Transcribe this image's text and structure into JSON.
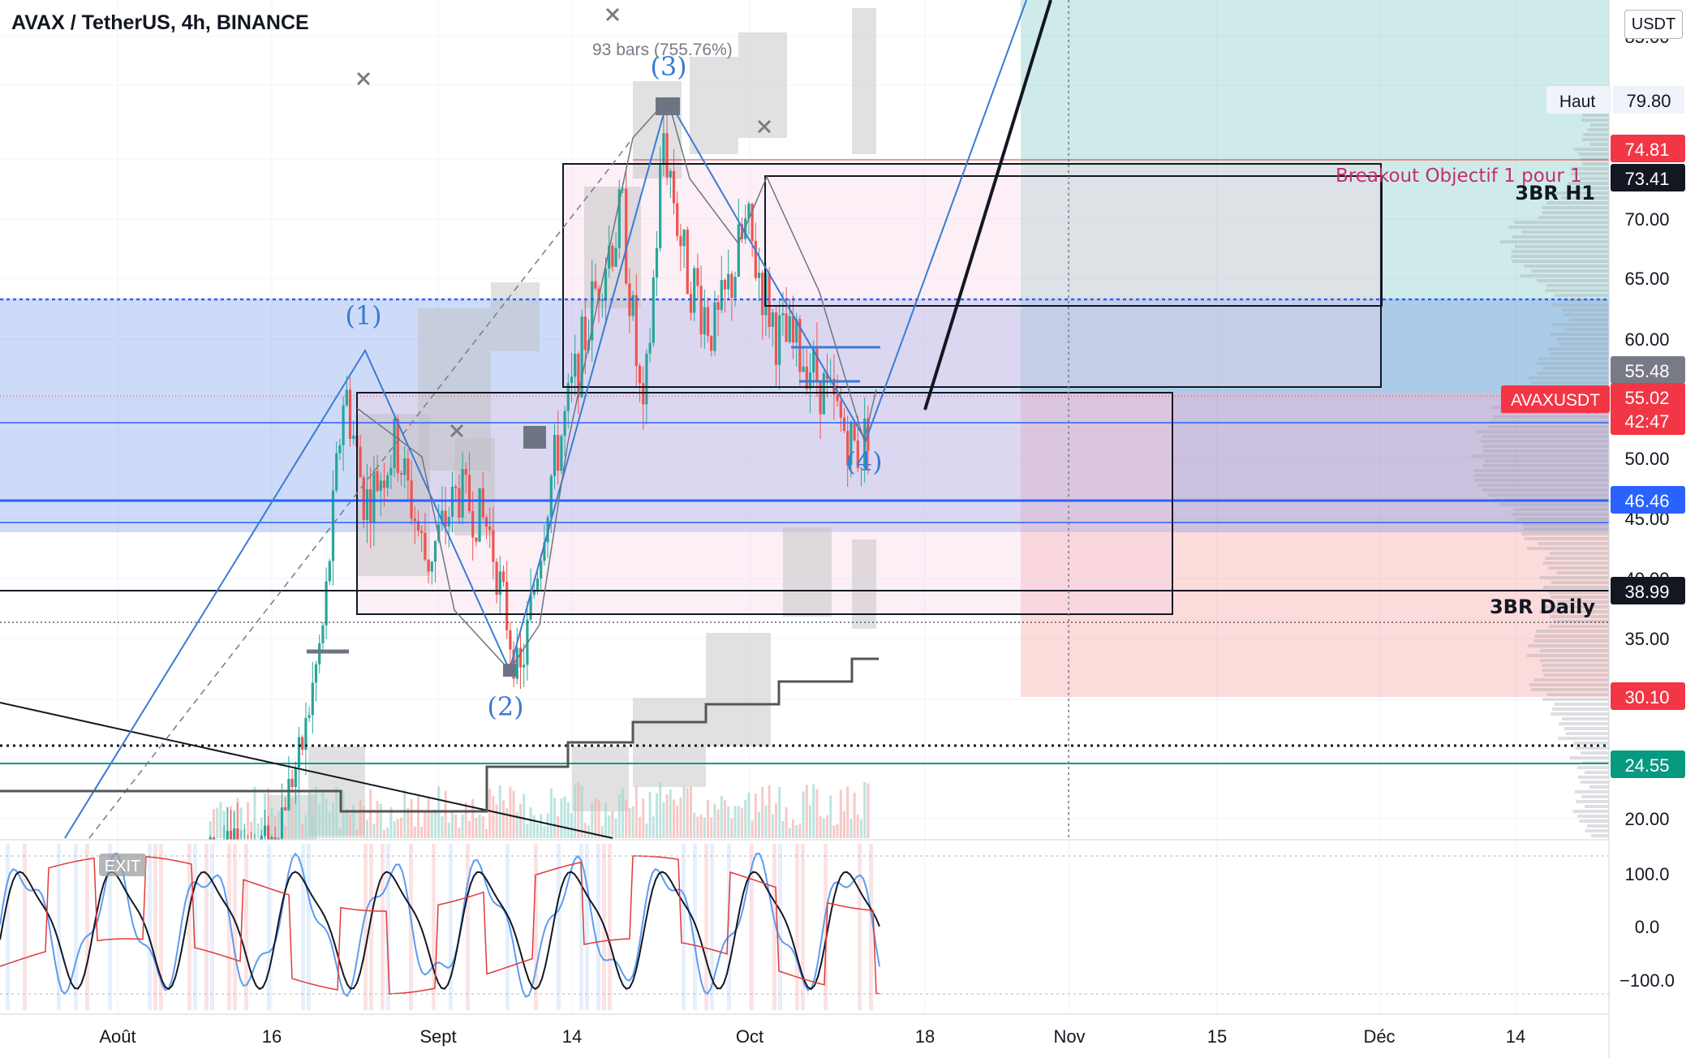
{
  "header": {
    "symbol_title": "AVAX / TetherUS, 4h, BINANCE"
  },
  "unit_button": "USDT",
  "colors": {
    "up": "#26a69a",
    "down": "#ef5350",
    "wave": "#3a7bd5",
    "zone_blue": "#4f7fe6",
    "tp": "#26a69a",
    "sl": "#f05a5a"
  },
  "chart_data": {
    "type": "candlestick",
    "symbol": "AVAXUSDT",
    "timeframe": "4h",
    "exchange": "BINANCE",
    "y_axis": {
      "ticks": [
        "85.00",
        "70.00",
        "65.00",
        "60.00",
        "50.00",
        "45.00",
        "40.00",
        "35.00",
        "20.00"
      ],
      "ylim": [
        18,
        88
      ]
    },
    "x_axis": {
      "ticks": [
        "Août",
        "16",
        "Sept",
        "14",
        "Oct",
        "18",
        "Nov",
        "15",
        "Déc",
        "14"
      ]
    },
    "price_tags": [
      {
        "key": "high_label",
        "text": "Haut",
        "value": "79.80"
      },
      {
        "key": "red_tag",
        "value": "74.81"
      },
      {
        "key": "black_tag",
        "value": "73.41"
      },
      {
        "key": "grey_tag",
        "value": "55.48"
      },
      {
        "key": "last_symbol",
        "text": "AVAXUSDT",
        "value": "55.02",
        "countdown": "42:47"
      },
      {
        "key": "blue_tag",
        "value": "46.46"
      },
      {
        "key": "black_tag_2",
        "value": "38.99"
      },
      {
        "key": "red_tag_2",
        "value": "30.10"
      },
      {
        "key": "teal_tag",
        "value": "24.55"
      }
    ],
    "annotations": {
      "wave_1": "(1)",
      "wave_2": "(2)",
      "wave_3": "(3)",
      "wave_4": "(4)",
      "bars_range": "93 bars (755.76%)",
      "breakout": "Breakout Objectif 1 pour 1",
      "zone_h1": "3BR H1",
      "zone_daily": "3BR Daily",
      "exit": "EXIT"
    },
    "wave_points": [
      {
        "label": "(1)",
        "date": "Aug 23",
        "price": 59.0
      },
      {
        "label": "(2)",
        "date": "Sep 09",
        "price": 32.5
      },
      {
        "label": "(3)",
        "date": "Sep 23",
        "price": 80.0
      },
      {
        "label": "(4)",
        "date": "Oct 12",
        "price": 51.0
      }
    ],
    "price_path": [
      {
        "date": "Aug 10",
        "price": 19
      },
      {
        "date": "Aug 16",
        "price": 20
      },
      {
        "date": "Aug 19",
        "price": 28
      },
      {
        "date": "Aug 21",
        "price": 38
      },
      {
        "date": "Aug 23",
        "price": 58
      },
      {
        "date": "Aug 25",
        "price": 48
      },
      {
        "date": "Aug 28",
        "price": 53
      },
      {
        "date": "Aug 31",
        "price": 43
      },
      {
        "date": "Sep 03",
        "price": 49
      },
      {
        "date": "Sep 06",
        "price": 46
      },
      {
        "date": "Sep 09",
        "price": 33
      },
      {
        "date": "Sep 12",
        "price": 50
      },
      {
        "date": "Sep 14",
        "price": 57
      },
      {
        "date": "Sep 17",
        "price": 68
      },
      {
        "date": "Sep 19",
        "price": 72
      },
      {
        "date": "Sep 21",
        "price": 54
      },
      {
        "date": "Sep 23",
        "price": 79
      },
      {
        "date": "Sep 25",
        "price": 68
      },
      {
        "date": "Sep 28",
        "price": 62
      },
      {
        "date": "Oct 01",
        "price": 71
      },
      {
        "date": "Oct 04",
        "price": 62
      },
      {
        "date": "Oct 07",
        "price": 60
      },
      {
        "date": "Oct 10",
        "price": 55
      },
      {
        "date": "Oct 12",
        "price": 52
      },
      {
        "date": "Oct 13",
        "price": 55
      }
    ],
    "oscillator": {
      "ticks": [
        "100.0",
        "0.0",
        "−100.0"
      ],
      "ylim": [
        -130,
        130
      ]
    }
  }
}
